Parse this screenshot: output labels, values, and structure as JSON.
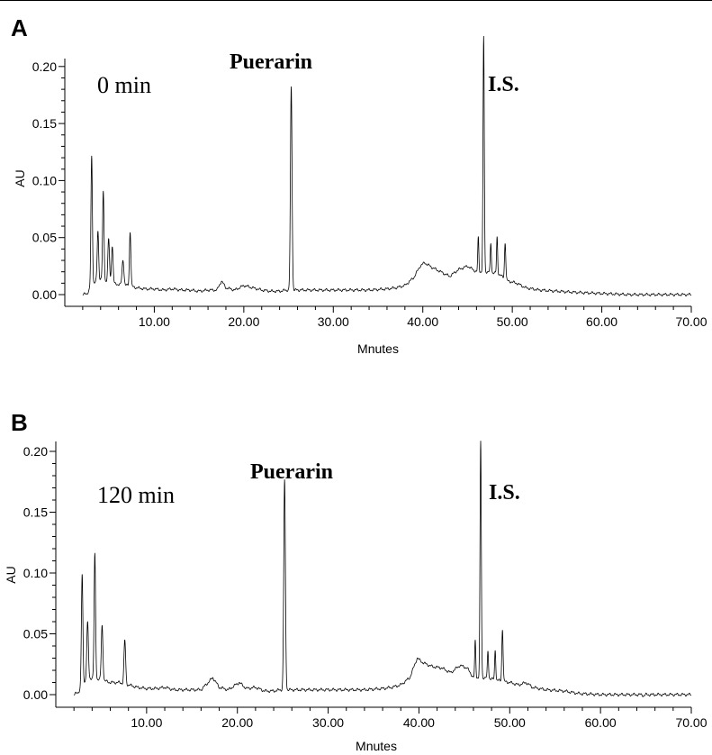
{
  "chart_data": [
    {
      "type": "line",
      "panel_label": "A",
      "time_label": "0 min",
      "annotations": [
        {
          "text": "Puerarin",
          "x": 25.3
        },
        {
          "text": "I.S.",
          "x": 46.8
        }
      ],
      "xlabel": "Mnutes",
      "ylabel": "AU",
      "xlim": [
        0,
        70
      ],
      "ylim": [
        -0.012,
        0.21
      ],
      "xticks": [
        "10.00",
        "20.00",
        "30.00",
        "40.00",
        "50.00",
        "60.00",
        "70.00"
      ],
      "yticks": [
        "0.00",
        "0.05",
        "0.10",
        "0.15",
        "0.20"
      ],
      "baseline": [
        [
          2.0,
          0.0
        ],
        [
          2.5,
          0.001
        ],
        [
          3.0,
          0.008
        ],
        [
          3.5,
          0.012
        ],
        [
          4.0,
          0.014
        ],
        [
          5.0,
          0.01
        ],
        [
          6.0,
          0.009
        ],
        [
          7.0,
          0.008
        ],
        [
          8.0,
          0.006
        ],
        [
          9.0,
          0.005
        ],
        [
          10.0,
          0.005
        ],
        [
          11.0,
          0.004
        ],
        [
          12.0,
          0.005
        ],
        [
          13.0,
          0.004
        ],
        [
          14.0,
          0.004
        ],
        [
          15.0,
          0.003
        ],
        [
          16.0,
          0.004
        ],
        [
          17.0,
          0.004
        ],
        [
          17.5,
          0.012
        ],
        [
          18.0,
          0.006
        ],
        [
          19.0,
          0.004
        ],
        [
          20.0,
          0.008
        ],
        [
          21.0,
          0.006
        ],
        [
          22.0,
          0.004
        ],
        [
          23.0,
          0.003
        ],
        [
          24.0,
          0.003
        ],
        [
          24.8,
          0.004
        ],
        [
          25.8,
          0.004
        ],
        [
          26.5,
          0.004
        ],
        [
          28.0,
          0.004
        ],
        [
          30.0,
          0.004
        ],
        [
          32.0,
          0.004
        ],
        [
          34.0,
          0.004
        ],
        [
          36.0,
          0.005
        ],
        [
          37.0,
          0.006
        ],
        [
          38.0,
          0.008
        ],
        [
          39.0,
          0.015
        ],
        [
          39.7,
          0.025
        ],
        [
          40.2,
          0.028
        ],
        [
          41.0,
          0.024
        ],
        [
          42.0,
          0.02
        ],
        [
          43.0,
          0.016
        ],
        [
          44.0,
          0.022
        ],
        [
          45.0,
          0.025
        ],
        [
          46.0,
          0.02
        ],
        [
          47.5,
          0.02
        ],
        [
          48.5,
          0.018
        ],
        [
          49.5,
          0.012
        ],
        [
          50.5,
          0.01
        ],
        [
          51.5,
          0.006
        ],
        [
          53.0,
          0.004
        ],
        [
          55.0,
          0.003
        ],
        [
          57.0,
          0.002
        ],
        [
          60.0,
          0.001
        ],
        [
          63.0,
          0.0
        ],
        [
          66.0,
          0.0
        ],
        [
          70.0,
          0.0
        ]
      ],
      "peaks": [
        {
          "x": 3.0,
          "h": 0.113,
          "w": 0.08
        },
        {
          "x": 3.7,
          "h": 0.043,
          "w": 0.08
        },
        {
          "x": 4.3,
          "h": 0.077,
          "w": 0.08
        },
        {
          "x": 4.9,
          "h": 0.038,
          "w": 0.09
        },
        {
          "x": 5.3,
          "h": 0.033,
          "w": 0.09
        },
        {
          "x": 6.5,
          "h": 0.022,
          "w": 0.1
        },
        {
          "x": 7.3,
          "h": 0.048,
          "w": 0.08
        },
        {
          "x": 25.3,
          "h": 0.178,
          "w": 0.09
        },
        {
          "x": 46.2,
          "h": 0.03,
          "w": 0.06
        },
        {
          "x": 46.8,
          "h": 0.206,
          "w": 0.07
        },
        {
          "x": 47.6,
          "h": 0.025,
          "w": 0.06
        },
        {
          "x": 48.3,
          "h": 0.032,
          "w": 0.06
        },
        {
          "x": 49.2,
          "h": 0.032,
          "w": 0.07
        }
      ]
    },
    {
      "type": "line",
      "panel_label": "B",
      "time_label": "120 min",
      "annotations": [
        {
          "text": "Puerarin",
          "x": 25.2
        },
        {
          "text": "I.S.",
          "x": 46.8
        }
      ],
      "xlabel": "Mnutes",
      "ylabel": "AU",
      "xlim": [
        0,
        70
      ],
      "ylim": [
        -0.012,
        0.202
      ],
      "xticks": [
        "10.00",
        "20.00",
        "30.00",
        "40.00",
        "50.00",
        "60.00",
        "70.00"
      ],
      "yticks": [
        "0.00",
        "0.05",
        "0.10",
        "0.15",
        "0.20"
      ],
      "baseline": [
        [
          2.0,
          0.0
        ],
        [
          2.5,
          0.002
        ],
        [
          3.0,
          0.01
        ],
        [
          3.5,
          0.012
        ],
        [
          4.0,
          0.014
        ],
        [
          5.0,
          0.012
        ],
        [
          6.0,
          0.01
        ],
        [
          7.0,
          0.01
        ],
        [
          8.0,
          0.008
        ],
        [
          9.0,
          0.006
        ],
        [
          10.0,
          0.005
        ],
        [
          11.0,
          0.005
        ],
        [
          12.0,
          0.006
        ],
        [
          13.0,
          0.004
        ],
        [
          14.0,
          0.004
        ],
        [
          15.0,
          0.004
        ],
        [
          16.0,
          0.004
        ],
        [
          17.3,
          0.014
        ],
        [
          18.0,
          0.006
        ],
        [
          19.0,
          0.004
        ],
        [
          20.2,
          0.01
        ],
        [
          21.0,
          0.005
        ],
        [
          22.0,
          0.006
        ],
        [
          23.0,
          0.003
        ],
        [
          24.0,
          0.003
        ],
        [
          24.8,
          0.004
        ],
        [
          25.8,
          0.004
        ],
        [
          26.5,
          0.004
        ],
        [
          28.0,
          0.004
        ],
        [
          30.0,
          0.004
        ],
        [
          32.0,
          0.004
        ],
        [
          34.0,
          0.004
        ],
        [
          36.0,
          0.005
        ],
        [
          37.0,
          0.006
        ],
        [
          38.0,
          0.008
        ],
        [
          39.0,
          0.014
        ],
        [
          39.8,
          0.03
        ],
        [
          40.5,
          0.026
        ],
        [
          41.5,
          0.023
        ],
        [
          42.5,
          0.022
        ],
        [
          43.5,
          0.018
        ],
        [
          44.5,
          0.024
        ],
        [
          45.3,
          0.022
        ],
        [
          46.0,
          0.014
        ],
        [
          47.5,
          0.014
        ],
        [
          48.5,
          0.012
        ],
        [
          50.0,
          0.01
        ],
        [
          51.0,
          0.008
        ],
        [
          51.8,
          0.01
        ],
        [
          52.5,
          0.006
        ],
        [
          54.0,
          0.004
        ],
        [
          56.0,
          0.003
        ],
        [
          57.5,
          0.001
        ],
        [
          60.0,
          0.0
        ],
        [
          64.6,
          0.0
        ],
        [
          64.7,
          -0.001
        ],
        [
          65.0,
          0.0
        ],
        [
          70.0,
          0.0
        ]
      ],
      "peaks": [
        {
          "x": 2.9,
          "h": 0.09,
          "w": 0.08
        },
        {
          "x": 3.5,
          "h": 0.047,
          "w": 0.09
        },
        {
          "x": 4.3,
          "h": 0.102,
          "w": 0.08
        },
        {
          "x": 5.1,
          "h": 0.045,
          "w": 0.09
        },
        {
          "x": 7.6,
          "h": 0.036,
          "w": 0.09
        },
        {
          "x": 25.2,
          "h": 0.172,
          "w": 0.09
        },
        {
          "x": 46.2,
          "h": 0.03,
          "w": 0.06
        },
        {
          "x": 46.8,
          "h": 0.194,
          "w": 0.07
        },
        {
          "x": 47.6,
          "h": 0.022,
          "w": 0.06
        },
        {
          "x": 48.4,
          "h": 0.025,
          "w": 0.06
        },
        {
          "x": 49.2,
          "h": 0.043,
          "w": 0.07
        }
      ]
    }
  ]
}
